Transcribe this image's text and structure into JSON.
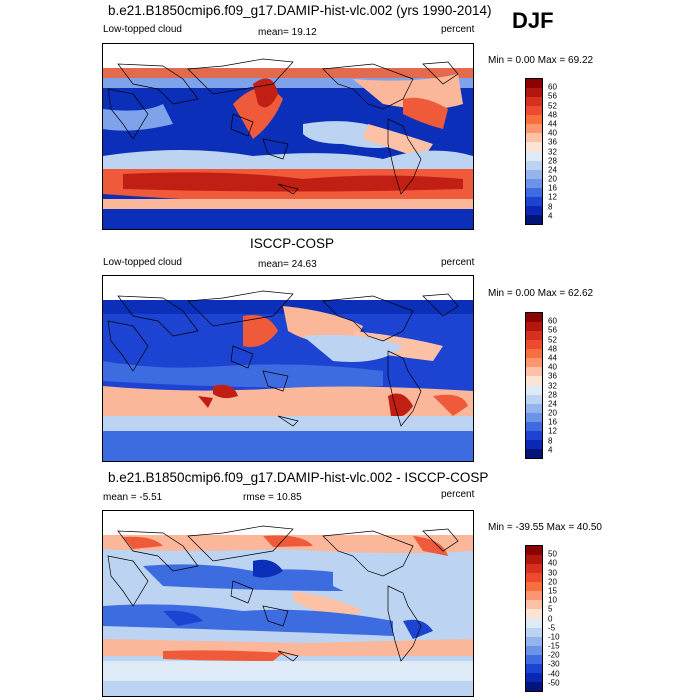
{
  "season": "DJF",
  "panels": [
    {
      "title": "b.e21.B1850cmip6.f09_g17.DAMIP-hist-vlc.002 (yrs 1990-2014)",
      "left_label": "Low-topped cloud",
      "center_label": "mean=  19.12",
      "right_label": "percent",
      "minmax": "Min =   0.00 Max =  69.22",
      "colorbar": {
        "labels": [
          "60",
          "56",
          "52",
          "48",
          "44",
          "40",
          "36",
          "32",
          "28",
          "24",
          "20",
          "16",
          "12",
          "8",
          "4"
        ],
        "colors": [
          "#8b0000",
          "#b2160f",
          "#d7301f",
          "#ee4a2f",
          "#f6703f",
          "#fb9670",
          "#fdc2a5",
          "#fbe4d4",
          "#dfeaf7",
          "#bcd3f1",
          "#93b5ec",
          "#6b93e6",
          "#3f6be0",
          "#1d43d2",
          "#0a28b5",
          "#02137a"
        ]
      }
    },
    {
      "title": "ISCCP-COSP",
      "left_label": "Low-topped cloud",
      "center_label": "mean=  24.63",
      "right_label": "percent",
      "minmax": "Min =   0.00 Max =  62.62",
      "colorbar": {
        "labels": [
          "60",
          "56",
          "52",
          "48",
          "44",
          "40",
          "36",
          "32",
          "28",
          "24",
          "20",
          "16",
          "12",
          "8",
          "4"
        ],
        "colors": [
          "#8b0000",
          "#b2160f",
          "#d7301f",
          "#ee4a2f",
          "#f6703f",
          "#fb9670",
          "#fdc2a5",
          "#fbe4d4",
          "#dfeaf7",
          "#bcd3f1",
          "#93b5ec",
          "#6b93e6",
          "#3f6be0",
          "#1d43d2",
          "#0a28b5",
          "#02137a"
        ]
      }
    },
    {
      "title": "b.e21.B1850cmip6.f09_g17.DAMIP-hist-vlc.002 - ISCCP-COSP",
      "left_label": "mean =  -5.51",
      "center_label": "rmse =  10.85",
      "right_label": "percent",
      "minmax": "Min = -39.55 Max =  40.50",
      "colorbar": {
        "labels": [
          "50",
          "40",
          "30",
          "20",
          "15",
          "10",
          "5",
          "0",
          "-5",
          "-10",
          "-15",
          "-20",
          "-30",
          "-40",
          "-50"
        ],
        "colors": [
          "#8b0000",
          "#b2160f",
          "#d7301f",
          "#ee4a2f",
          "#f6703f",
          "#fb9670",
          "#fdc2a5",
          "#fbe4d4",
          "#dfeaf7",
          "#bcd3f1",
          "#93b5ec",
          "#6b93e6",
          "#3f6be0",
          "#1d43d2",
          "#0a28b5",
          "#02137a"
        ]
      }
    }
  ],
  "colors": {
    "deep_blue": "#0b2fb8",
    "mid_blue": "#3d6be0",
    "light_blue": "#bcd3f1",
    "white": "#f4f4f4",
    "light_red": "#fbb79a",
    "mid_red": "#ef5a3a",
    "dark_red": "#c21f14"
  }
}
